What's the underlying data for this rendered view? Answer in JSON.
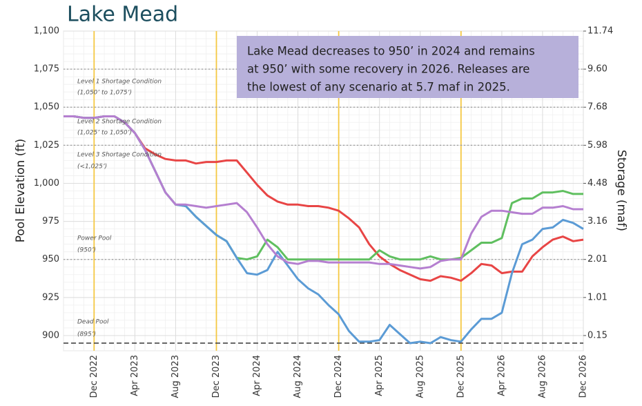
{
  "chart_data": {
    "type": "line",
    "title": "Lake Mead",
    "y_label": "Pool Elevation (ft)",
    "y2_label": "Storage (maf)",
    "note_lines": [
      "Lake Mead decreases to 950’ in 2024 and remains",
      "at 950’ with some recovery in 2026. Releases are",
      "the lowest of any scenario at 5.7 maf in 2025."
    ],
    "annotations": [
      {
        "text": "Level 1 Shortage Condition",
        "subtext": "(1,050’ to 1,075’)"
      },
      {
        "text": "Level 2 Shortage Condition",
        "subtext": "(1,025’ to 1,050’)"
      },
      {
        "text": "Level 3 Shortage Condition",
        "subtext": "(<1,025’)"
      },
      {
        "text": "Power Pool",
        "subtext": "(950’)"
      },
      {
        "text": "Dead Pool",
        "subtext": "(895’)"
      }
    ],
    "xlim": [
      "Sep 2022",
      "Dec 2026"
    ],
    "xticks": [
      "Dec 2022",
      "Apr 2023",
      "Aug 2023",
      "Dec 2023",
      "Apr 2024",
      "Aug 2024",
      "Dec 2024",
      "Apr 2025",
      "Aug 2025",
      "Dec 2025",
      "Apr 2026",
      "Aug 2026",
      "Dec 2026"
    ],
    "vlines": [
      "Dec 2022",
      "Dec 2023",
      "Dec 2024",
      "Dec 2025"
    ],
    "vline_color": "#f5c842",
    "hlines": [
      {
        "value": 1075,
        "style": "dotted"
      },
      {
        "value": 1050,
        "style": "dotted"
      },
      {
        "value": 1025,
        "style": "dotted"
      },
      {
        "value": 950,
        "style": "dotted"
      },
      {
        "value": 895,
        "style": "dashed"
      }
    ],
    "ylim": [
      890,
      1100
    ],
    "yticks": [
      900,
      925,
      950,
      975,
      {
        "value": 1000,
        "label": "1,000"
      },
      {
        "value": 1025,
        "label": "1,025"
      },
      {
        "value": 1050,
        "label": "1,050"
      },
      {
        "value": 1075,
        "label": "1,075"
      },
      {
        "value": 1100,
        "label": "1,100"
      }
    ],
    "y2ticks": [
      {
        "value": 0.15,
        "label": "0.15",
        "at": 900
      },
      {
        "value": 1.01,
        "label": "1.01",
        "at": 925
      },
      {
        "value": 2.01,
        "label": "2.01",
        "at": 950
      },
      {
        "value": 3.16,
        "label": "3.16",
        "at": 975
      },
      {
        "value": 4.48,
        "label": "4.48",
        "at": 1000
      },
      {
        "value": 5.98,
        "label": "5.98",
        "at": 1025
      },
      {
        "value": 7.68,
        "label": "7.68",
        "at": 1050
      },
      {
        "value": 9.6,
        "label": "9.60",
        "at": 1075
      },
      {
        "value": 11.74,
        "label": "11.74",
        "at": 1100
      }
    ],
    "grid": true,
    "x": [
      "Sep 2022",
      "Oct 2022",
      "Nov 2022",
      "Dec 2022",
      "Jan 2023",
      "Feb 2023",
      "Mar 2023",
      "Apr 2023",
      "May 2023",
      "Jun 2023",
      "Jul 2023",
      "Aug 2023",
      "Sep 2023",
      "Oct 2023",
      "Nov 2023",
      "Dec 2023",
      "Jan 2024",
      "Feb 2024",
      "Mar 2024",
      "Apr 2024",
      "May 2024",
      "Jun 2024",
      "Jul 2024",
      "Aug 2024",
      "Sep 2024",
      "Oct 2024",
      "Nov 2024",
      "Dec 2024",
      "Jan 2025",
      "Feb 2025",
      "Mar 2025",
      "Apr 2025",
      "May 2025",
      "Jun 2025",
      "Jul 2025",
      "Aug 2025",
      "Sep 2025",
      "Oct 2025",
      "Nov 2025",
      "Dec 2025",
      "Jan 2026",
      "Feb 2026",
      "Mar 2026",
      "Apr 2026",
      "May 2026",
      "Jun 2026",
      "Jul 2026",
      "Aug 2026",
      "Sep 2026",
      "Oct 2026",
      "Nov 2026",
      "Dec 2026"
    ],
    "series": [
      {
        "color": "#e84545",
        "values": [
          1044,
          1044,
          1043,
          1043,
          1044,
          1044,
          1040,
          1033,
          1023,
          1019,
          1016,
          1015,
          1015,
          1013,
          1014,
          1014,
          1015,
          1015,
          1007,
          999,
          992,
          988,
          986,
          986,
          985,
          985,
          984,
          982,
          977,
          971,
          960,
          952,
          947,
          943,
          940,
          937,
          936,
          939,
          938,
          936,
          941,
          947,
          946,
          941,
          942,
          942,
          952,
          958,
          963,
          965,
          962,
          963
        ]
      },
      {
        "color": "#5fbf5f",
        "values": [
          1044,
          1044,
          1043,
          1043,
          1044,
          1044,
          1040,
          1033,
          1022,
          1008,
          994,
          986,
          985,
          978,
          972,
          966,
          962,
          951,
          950,
          952,
          963,
          958,
          950,
          950,
          950,
          950,
          950,
          950,
          950,
          950,
          950,
          956,
          952,
          950,
          950,
          950,
          952,
          950,
          950,
          951,
          956,
          961,
          961,
          964,
          987,
          990,
          990,
          994,
          994,
          995,
          993,
          993
        ]
      },
      {
        "color": "#5b9bd5",
        "values": [
          1044,
          1044,
          1043,
          1043,
          1044,
          1044,
          1040,
          1033,
          1022,
          1008,
          994,
          986,
          985,
          978,
          972,
          966,
          962,
          951,
          941,
          940,
          943,
          955,
          946,
          937,
          931,
          927,
          920,
          914,
          903,
          896,
          896,
          897,
          907,
          901,
          895,
          896,
          895,
          899,
          897,
          896,
          904,
          911,
          911,
          915,
          941,
          960,
          963,
          970,
          971,
          976,
          974,
          970
        ]
      },
      {
        "color": "#b57fd0",
        "values": [
          1044,
          1044,
          1043,
          1043,
          1044,
          1044,
          1040,
          1033,
          1022,
          1008,
          994,
          986,
          986,
          985,
          984,
          985,
          986,
          987,
          981,
          971,
          960,
          952,
          948,
          947,
          949,
          949,
          948,
          948,
          948,
          948,
          948,
          947,
          947,
          946,
          945,
          944,
          945,
          949,
          950,
          950,
          967,
          978,
          982,
          982,
          981,
          980,
          980,
          984,
          984,
          985,
          983,
          983
        ]
      }
    ]
  }
}
